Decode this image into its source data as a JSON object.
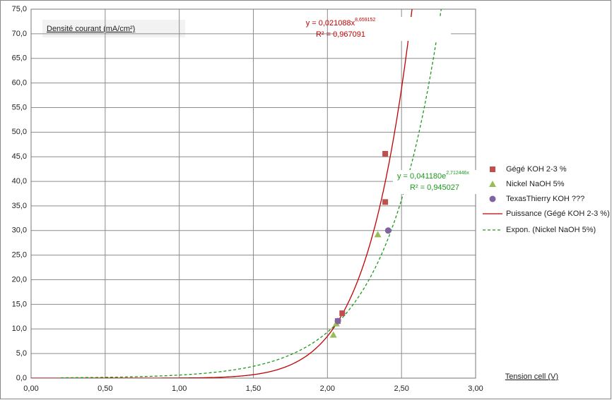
{
  "chart_data": {
    "type": "scatter",
    "y_title": "Densité courant (mA/cm²)",
    "x_title": "Tension cell (V)",
    "xlim": [
      0,
      3
    ],
    "ylim": [
      0,
      75
    ],
    "grid": true,
    "xticks": [
      {
        "value": 0,
        "label": "0,00"
      },
      {
        "value": 0.5,
        "label": "0,50"
      },
      {
        "value": 1,
        "label": "1,00"
      },
      {
        "value": 1.5,
        "label": "1,50"
      },
      {
        "value": 2,
        "label": "2,00"
      },
      {
        "value": 2.5,
        "label": "2,50"
      },
      {
        "value": 3,
        "label": "3,00"
      }
    ],
    "yticks": [
      {
        "value": 0,
        "label": "0,0"
      },
      {
        "value": 5,
        "label": "5,0"
      },
      {
        "value": 10,
        "label": "10,0"
      },
      {
        "value": 15,
        "label": "15,0"
      },
      {
        "value": 20,
        "label": "20,0"
      },
      {
        "value": 25,
        "label": "25,0"
      },
      {
        "value": 30,
        "label": "30,0"
      },
      {
        "value": 35,
        "label": "35,0"
      },
      {
        "value": 40,
        "label": "40,0"
      },
      {
        "value": 45,
        "label": "45,0"
      },
      {
        "value": 50,
        "label": "50,0"
      },
      {
        "value": 55,
        "label": "55,0"
      },
      {
        "value": 60,
        "label": "60,0"
      },
      {
        "value": 65,
        "label": "65,0"
      },
      {
        "value": 70,
        "label": "70,0"
      },
      {
        "value": 75,
        "label": "75,0"
      }
    ],
    "series": [
      {
        "name": "Gégé KOH 2-3 %",
        "color": "#c0504d",
        "marker": "square",
        "x": [
          2.39,
          2.39,
          2.1,
          2.07
        ],
        "values": [
          45.6,
          35.8,
          13.2,
          11.6
        ]
      },
      {
        "name": "Nickel NaOH 5%",
        "color": "#9bbb59",
        "marker": "triangle",
        "x": [
          2.04,
          2.06,
          2.34
        ],
        "values": [
          8.8,
          11.1,
          29.2
        ]
      },
      {
        "name": "TexasThierry KOH ???",
        "color": "#8064a2",
        "marker": "circle",
        "x": [
          2.07,
          2.41
        ],
        "values": [
          11.6,
          30.0
        ]
      }
    ],
    "trendlines": [
      {
        "name": "Puissance (Gégé KOH 2-3 %)",
        "type": "power",
        "series": 0,
        "color": "#c00000",
        "dashed": false,
        "x_from": 0,
        "a": {
          "value": 0.021088,
          "label": "y = 0,021088x"
        },
        "b": {
          "value": 8.659152,
          "label": "8,659152"
        },
        "r2": {
          "value": 0.967091,
          "label": "R² = 0,967091"
        }
      },
      {
        "name": "Expon. (Nickel NaOH 5%)",
        "type": "exponential",
        "series": 1,
        "color": "#1a9a1a",
        "dashed": true,
        "x_from": 0.2,
        "a": {
          "value": 0.04118,
          "label": "y = 0,041180e"
        },
        "b": {
          "value": 2.712446,
          "label": "2,712446x"
        },
        "r2": {
          "value": 0.945027,
          "label": "R² = 0,945027"
        }
      }
    ]
  }
}
